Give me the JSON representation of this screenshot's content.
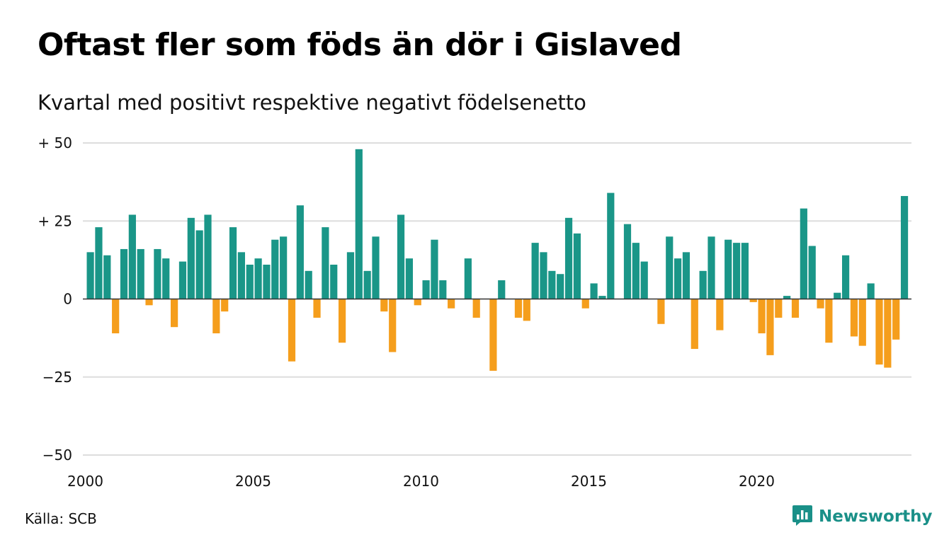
{
  "title": "Oftast fler som föds än dör i Gislaved",
  "subtitle": "Kvartal med positivt respektive negativt födelsenetto",
  "source": "Källa: SCB",
  "brand": {
    "name": "Newsworthy",
    "icon": "newsworthy-logo-icon"
  },
  "colors": {
    "positive": "#1a9688",
    "negative": "#f59e1c",
    "grid": "#dddddd",
    "axis": "#333333"
  },
  "chart_data": {
    "type": "bar",
    "x_start": "2000 Q1",
    "x_ticks": [
      "2000",
      "2005",
      "2010",
      "2015",
      "2020"
    ],
    "y_ticks": [
      "+ 50",
      "+ 25",
      "0",
      "−25",
      "−50"
    ],
    "y_tick_values": [
      50,
      25,
      0,
      -25,
      -50
    ],
    "ylim": [
      -50,
      50
    ],
    "grid": true,
    "values": [
      15,
      23,
      14,
      -11,
      16,
      27,
      16,
      -2,
      16,
      13,
      -9,
      12,
      26,
      22,
      27,
      -11,
      -4,
      23,
      15,
      11,
      13,
      11,
      19,
      20,
      -20,
      30,
      9,
      -6,
      23,
      11,
      -14,
      15,
      48,
      9,
      20,
      -4,
      -17,
      27,
      13,
      -2,
      6,
      19,
      6,
      -3,
      0,
      13,
      -6,
      0,
      -23,
      6,
      0,
      -6,
      -7,
      18,
      15,
      9,
      8,
      26,
      21,
      -3,
      5,
      1,
      34,
      0,
      24,
      18,
      12,
      0,
      -8,
      20,
      13,
      15,
      -16,
      9,
      20,
      -10,
      19,
      18,
      18,
      -1,
      -11,
      -18,
      -6,
      1,
      -6,
      29,
      17,
      -3,
      -14,
      2,
      14,
      -12,
      -15,
      5,
      -21,
      -22,
      -13,
      33
    ]
  }
}
